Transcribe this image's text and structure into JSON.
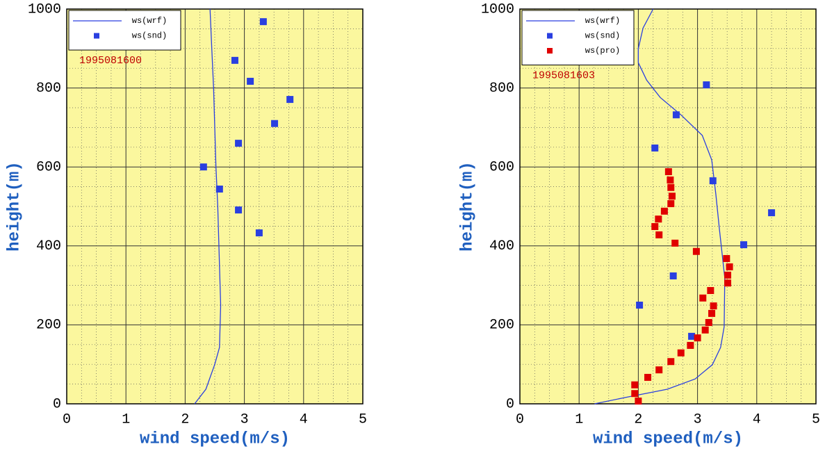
{
  "chart_data": [
    {
      "type": "line",
      "xlabel": "wind speed(m/s)",
      "ylabel": "height(m)",
      "annotation": "1995081600",
      "xlim": [
        0,
        5
      ],
      "ylim": [
        0,
        1000
      ],
      "xticks": [
        0,
        1,
        2,
        3,
        4,
        5
      ],
      "yticks": [
        0,
        200,
        400,
        600,
        800,
        1000
      ],
      "minor_xticks": [
        0.25,
        0.5,
        0.75,
        1.25,
        1.5,
        1.75,
        2.25,
        2.5,
        2.75,
        3.25,
        3.5,
        3.75,
        4.25,
        4.5,
        4.75
      ],
      "minor_yticks": [
        50,
        100,
        150,
        250,
        300,
        350,
        450,
        500,
        550,
        650,
        700,
        750,
        850,
        900,
        950
      ],
      "grid": true,
      "background": "#fbf79e",
      "legend": "upper left",
      "series": [
        {
          "name": "ws(wrf)",
          "color": "#2a3fe0",
          "mode": "line",
          "x": [
            2.16,
            2.35,
            2.5,
            2.58,
            2.6,
            2.58,
            2.55,
            2.52,
            2.48,
            2.45,
            2.42
          ],
          "values": [
            0,
            37,
            100,
            143,
            250,
            350,
            500,
            600,
            800,
            900,
            1000
          ]
        },
        {
          "name": "ws(snd)",
          "color": "#2a3fe0",
          "mode": "markers",
          "x": [
            3.32,
            2.84,
            3.1,
            3.77,
            3.51,
            2.9,
            2.31,
            2.58,
            2.9,
            3.25
          ],
          "values": [
            968,
            870,
            817,
            771,
            710,
            660,
            600,
            544,
            491,
            433
          ]
        }
      ]
    },
    {
      "type": "line",
      "xlabel": "wind speed(m/s)",
      "ylabel": "height(m)",
      "annotation": "1995081603",
      "xlim": [
        0,
        5
      ],
      "ylim": [
        0,
        1000
      ],
      "xticks": [
        0,
        1,
        2,
        3,
        4,
        5
      ],
      "yticks": [
        0,
        200,
        400,
        600,
        800,
        1000
      ],
      "minor_xticks": [
        0.25,
        0.5,
        0.75,
        1.25,
        1.5,
        1.75,
        2.25,
        2.5,
        2.75,
        3.25,
        3.5,
        3.75,
        4.25,
        4.5,
        4.75
      ],
      "minor_yticks": [
        50,
        100,
        150,
        250,
        300,
        350,
        450,
        500,
        550,
        650,
        700,
        750,
        850,
        900,
        950
      ],
      "grid": true,
      "background": "#fbf79e",
      "legend": "upper left",
      "series": [
        {
          "name": "ws(wrf)",
          "color": "#2a3fe0",
          "mode": "line",
          "x": [
            1.26,
            1.78,
            2.49,
            2.96,
            3.25,
            3.39,
            3.45,
            3.46,
            3.37,
            3.31,
            3.24,
            3.08,
            2.72,
            2.37,
            2.14,
            2.0,
            2.0,
            2.08,
            2.25
          ],
          "values": [
            0,
            16,
            37,
            63,
            99,
            143,
            195,
            319,
            442,
            530,
            618,
            680,
            732,
            776,
            820,
            864,
            900,
            952,
            1000
          ]
        },
        {
          "name": "ws(snd)",
          "color": "#2a3fe0",
          "mode": "markers",
          "x": [
            3.15,
            2.64,
            2.28,
            3.26,
            4.25,
            3.78,
            2.59,
            2.02,
            2.9
          ],
          "values": [
            808,
            732,
            648,
            565,
            484,
            403,
            324,
            250,
            171
          ]
        },
        {
          "name": "ws(pro)",
          "color": "#e00000",
          "mode": "markers",
          "x": [
            1.94,
            1.94,
            2.0,
            2.16,
            2.35,
            2.55,
            2.72,
            2.88,
            3.0,
            3.13,
            3.19,
            3.24,
            3.27,
            3.09,
            3.22,
            3.51,
            3.51,
            3.54,
            3.49,
            2.98,
            2.62,
            2.35,
            2.28,
            2.34,
            2.44,
            2.55,
            2.57,
            2.55,
            2.54,
            2.51
          ],
          "values": [
            48,
            26,
            7,
            67,
            86,
            107,
            129,
            148,
            167,
            187,
            206,
            229,
            248,
            268,
            287,
            306,
            326,
            347,
            368,
            386,
            407,
            428,
            449,
            468,
            488,
            507,
            526,
            548,
            567,
            588
          ]
        }
      ]
    }
  ]
}
